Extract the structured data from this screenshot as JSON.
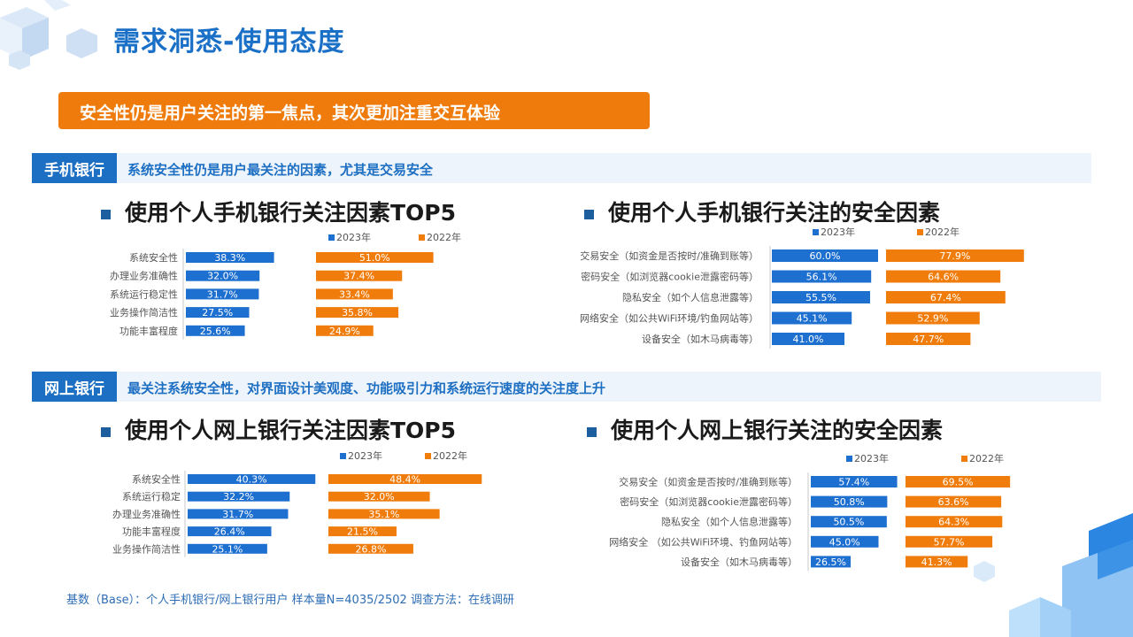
{
  "title": "需求洞悉-使用态度",
  "banner": "安全性仍是用户关注的第一焦点，其次更加注重交互体验",
  "sections": [
    {
      "tag": "手机银行",
      "desc": "系统安全性仍是用户最关注的因素，尤其是交易安全"
    },
    {
      "tag": "网上银行",
      "desc": "最关注系统安全性，对界面设计美观度、功能吸引力和系统运行速度的关注度上升"
    }
  ],
  "footnote": "基数（Base）：个人手机银行/网上银行用户  样本量N=4035/2502  调查方法：在线调研",
  "colors": {
    "y2023": "#1d6fd0",
    "y2022": "#f07d0b"
  },
  "chart_data": [
    {
      "type": "bar",
      "title": "使用个人手机银行关注因素TOP5",
      "categories": [
        "系统安全性",
        "办理业务准确性",
        "系统运行稳定性",
        "业务操作简洁性",
        "功能丰富程度"
      ],
      "series": [
        {
          "name": "2023年",
          "values": [
            38.3,
            32.0,
            31.7,
            27.5,
            25.6
          ]
        },
        {
          "name": "2022年",
          "values": [
            51.0,
            37.4,
            33.4,
            35.8,
            24.9
          ]
        }
      ],
      "legend": "top"
    },
    {
      "type": "bar",
      "title": "使用个人手机银行关注的安全因素",
      "categories": [
        "交易安全（如资金是否按时/准确到账等）",
        "密码安全（如浏览器cookie泄露密码等）",
        "隐私安全（如个人信息泄露等）",
        "网络安全（如公共WiFi环境/钓鱼网站等）",
        "设备安全（如木马病毒等）"
      ],
      "series": [
        {
          "name": "2023年",
          "values": [
            60.0,
            56.1,
            55.5,
            45.1,
            41.0
          ]
        },
        {
          "name": "2022年",
          "values": [
            77.9,
            64.6,
            67.4,
            52.9,
            47.7
          ]
        }
      ],
      "legend": "top"
    },
    {
      "type": "bar",
      "title": "使用个人网上银行关注因素TOP5",
      "categories": [
        "系统安全性",
        "系统运行稳定",
        "办理业务准确性",
        "功能丰富程度",
        "业务操作简洁性"
      ],
      "series": [
        {
          "name": "2023年",
          "values": [
            40.3,
            32.2,
            31.7,
            26.4,
            25.1
          ]
        },
        {
          "name": "2022年",
          "values": [
            48.4,
            32.0,
            35.1,
            21.5,
            26.8
          ]
        }
      ],
      "legend": "top"
    },
    {
      "type": "bar",
      "title": "使用个人网上银行关注的安全因素",
      "categories": [
        "交易安全（如资金是否按时/准确到账等）",
        "密码安全（如浏览器cookie泄露密码等）",
        "隐私安全（如个人信息泄露等）",
        "网络安全 （如公共WiFi环境、钓鱼网站等）",
        "设备安全（如木马病毒等）"
      ],
      "series": [
        {
          "name": "2023年",
          "values": [
            57.4,
            50.8,
            50.5,
            45.0,
            26.5
          ]
        },
        {
          "name": "2022年",
          "values": [
            69.5,
            63.6,
            64.3,
            57.7,
            41.3
          ]
        }
      ],
      "legend": "top"
    }
  ]
}
